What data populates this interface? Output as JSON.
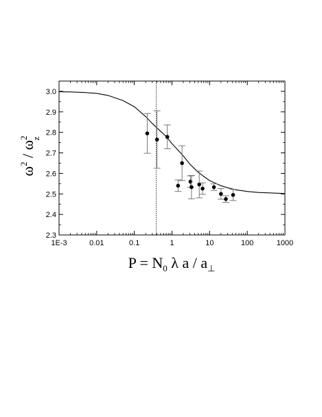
{
  "chart_data": {
    "type": "scatter",
    "x_scale": "log",
    "xlim": [
      0.001,
      1000
    ],
    "ylim": [
      2.3,
      3.05
    ],
    "grid": false,
    "x_ticks": [
      0.001,
      0.01,
      0.1,
      1,
      10,
      100,
      1000
    ],
    "x_tick_labels": [
      "1E-3",
      "0.01",
      "0.1",
      "1",
      "10",
      "100",
      "1000"
    ],
    "y_ticks": [
      2.3,
      2.4,
      2.5,
      2.6,
      2.7,
      2.8,
      2.9,
      3.0
    ],
    "y_tick_labels": [
      "2.3",
      "2.4",
      "2.5",
      "2.6",
      "2.7",
      "2.8",
      "2.9",
      "3.0"
    ],
    "xlabel": {
      "prefix": "P = N",
      "sub1": "0",
      "mid": " λ a / a",
      "sub2": "⊥"
    },
    "ylabel": {
      "base1": "ω",
      "sup1": "2",
      "slash": " / ω",
      "sup2": "2",
      "sub2": "z"
    },
    "vline_x": 0.38,
    "series": [
      {
        "kind": "points-with-error",
        "points": [
          {
            "x": 0.22,
            "y": 2.795,
            "err": 0.097
          },
          {
            "x": 0.4,
            "y": 2.765,
            "err": 0.14
          },
          {
            "x": 0.75,
            "y": 2.778,
            "err": 0.058
          },
          {
            "x": 1.45,
            "y": 2.54,
            "err": 0.028
          },
          {
            "x": 1.85,
            "y": 2.65,
            "err": 0.085
          },
          {
            "x": 3.1,
            "y": 2.56,
            "err": 0.028
          },
          {
            "x": 3.3,
            "y": 2.533,
            "err": 0.057
          },
          {
            "x": 5.3,
            "y": 2.546,
            "err": 0.065
          },
          {
            "x": 6.5,
            "y": 2.526,
            "err": 0.028
          },
          {
            "x": 13,
            "y": 2.533,
            "err": 0.016
          },
          {
            "x": 20,
            "y": 2.5,
            "err": 0.026
          },
          {
            "x": 27,
            "y": 2.475,
            "err": 0.016
          },
          {
            "x": 42,
            "y": 2.495,
            "err": 0.027
          }
        ]
      },
      {
        "kind": "curve",
        "points": [
          {
            "x": 0.001,
            "y": 2.998
          },
          {
            "x": 0.002,
            "y": 2.997
          },
          {
            "x": 0.005,
            "y": 2.994
          },
          {
            "x": 0.01,
            "y": 2.99
          },
          {
            "x": 0.02,
            "y": 2.98
          },
          {
            "x": 0.05,
            "y": 2.955
          },
          {
            "x": 0.1,
            "y": 2.925
          },
          {
            "x": 0.2,
            "y": 2.877
          },
          {
            "x": 0.3,
            "y": 2.843
          },
          {
            "x": 0.5,
            "y": 2.805
          },
          {
            "x": 0.7,
            "y": 2.78
          },
          {
            "x": 1,
            "y": 2.745
          },
          {
            "x": 1.5,
            "y": 2.71
          },
          {
            "x": 2,
            "y": 2.685
          },
          {
            "x": 3,
            "y": 2.645
          },
          {
            "x": 5,
            "y": 2.605
          },
          {
            "x": 7,
            "y": 2.585
          },
          {
            "x": 10,
            "y": 2.565
          },
          {
            "x": 20,
            "y": 2.54
          },
          {
            "x": 30,
            "y": 2.53
          },
          {
            "x": 50,
            "y": 2.52
          },
          {
            "x": 100,
            "y": 2.512
          },
          {
            "x": 200,
            "y": 2.507
          },
          {
            "x": 500,
            "y": 2.504
          },
          {
            "x": 1000,
            "y": 2.502
          }
        ]
      }
    ]
  }
}
